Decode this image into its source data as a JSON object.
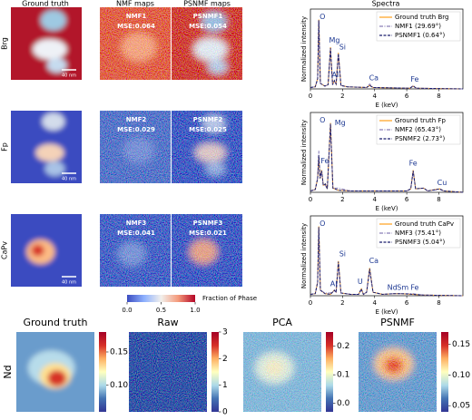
{
  "column_titles": [
    "Ground truth",
    "NMF maps",
    "PSNMF maps",
    "Spectra"
  ],
  "rows": [
    {
      "label": "Brg",
      "scale_bar": "40 nm",
      "nmf_label": "NMF1",
      "nmf_mse": "MSE:0.064",
      "psnmf_label": "PSNMF1",
      "psnmf_mse": "MSE:0.054"
    },
    {
      "label": "Fp",
      "scale_bar": "40 nm",
      "nmf_label": "NMF2",
      "nmf_mse": "MSE:0.029",
      "psnmf_label": "PSNMF2",
      "psnmf_mse": "MSE:0.025"
    },
    {
      "label": "CaPv",
      "scale_bar": "40 nm",
      "nmf_label": "NMF3",
      "nmf_mse": "MSE:0.041",
      "psnmf_label": "PSNMF3",
      "psnmf_mse": "MSE:0.021"
    }
  ],
  "colorbar": {
    "label": "Fraction of Phase",
    "lim": [
      0,
      1
    ],
    "ticks": [
      {
        "value": 0,
        "label": "0.0"
      },
      {
        "value": 0.5,
        "label": "0.5"
      },
      {
        "value": 1,
        "label": "1.0"
      }
    ]
  },
  "chart_data": [
    {
      "type": "line",
      "xlabel": "E (keV)",
      "ylabel": "Normalized intensity",
      "xlim": [
        0,
        9.5
      ],
      "xticks": [
        0,
        2,
        4,
        6,
        8
      ],
      "ylim": [
        0,
        1.15
      ],
      "legend": "upper right",
      "x": [
        0,
        0.3,
        0.45,
        0.52,
        0.62,
        0.9,
        1.1,
        1.25,
        1.38,
        1.49,
        1.6,
        1.74,
        1.9,
        2.3,
        3.5,
        3.69,
        3.9,
        6.2,
        6.4,
        6.6,
        9.5
      ],
      "series": [
        {
          "name": "Ground truth Brg",
          "color": "#ff9f1c",
          "linestyle": "solid",
          "values": [
            0.02,
            0.03,
            0.15,
            1.0,
            0.08,
            0.04,
            0.06,
            0.6,
            0.06,
            0.12,
            0.07,
            0.52,
            0.05,
            0.03,
            0.02,
            0.05,
            0.02,
            0.01,
            0.04,
            0.01,
            0.0
          ]
        },
        {
          "name": "NMF1 (29.69°)",
          "color": "#8a7fb8",
          "linestyle": "dashdot",
          "values": [
            0.02,
            0.03,
            0.14,
            0.98,
            0.08,
            0.04,
            0.06,
            0.58,
            0.06,
            0.11,
            0.07,
            0.5,
            0.05,
            0.03,
            0.02,
            0.07,
            0.02,
            0.01,
            0.05,
            0.01,
            0.0
          ]
        },
        {
          "name": "PSNMF1 (0.64°)",
          "color": "#1b1f6e",
          "linestyle": "dashed",
          "values": [
            0.02,
            0.03,
            0.15,
            0.99,
            0.08,
            0.04,
            0.06,
            0.59,
            0.06,
            0.12,
            0.07,
            0.51,
            0.05,
            0.03,
            0.02,
            0.05,
            0.02,
            0.01,
            0.04,
            0.01,
            0.0
          ]
        }
      ],
      "annotations": [
        "O",
        "Mg",
        "Si",
        "Al",
        "Ca",
        "Fe"
      ]
    },
    {
      "type": "line",
      "xlabel": "E (keV)",
      "ylabel": "Normalized intensity",
      "xlim": [
        0,
        9.5
      ],
      "xticks": [
        0,
        2,
        4,
        6,
        8
      ],
      "ylim": [
        0,
        1.15
      ],
      "legend": "upper right",
      "x": [
        0,
        0.3,
        0.45,
        0.52,
        0.6,
        0.7,
        0.8,
        0.93,
        1.05,
        1.25,
        1.4,
        1.74,
        2.5,
        6.0,
        6.25,
        6.4,
        6.55,
        7.06,
        7.3,
        8.05,
        8.3,
        9.5
      ],
      "series": [
        {
          "name": "Ground truth Fp",
          "color": "#ff9f1c",
          "linestyle": "solid",
          "values": [
            0.02,
            0.04,
            0.2,
            0.52,
            0.2,
            0.32,
            0.1,
            0.12,
            0.05,
            1.0,
            0.06,
            0.03,
            0.02,
            0.02,
            0.05,
            0.32,
            0.05,
            0.06,
            0.02,
            0.05,
            0.02,
            0.0
          ]
        },
        {
          "name": "NMF2 (65.43°)",
          "color": "#8a7fb8",
          "linestyle": "dashdot",
          "values": [
            0.02,
            0.04,
            0.22,
            0.6,
            0.2,
            0.3,
            0.1,
            0.1,
            0.05,
            0.95,
            0.06,
            0.06,
            0.02,
            0.02,
            0.05,
            0.3,
            0.05,
            0.06,
            0.02,
            0.04,
            0.02,
            0.0
          ]
        },
        {
          "name": "PSNMF2 (2.73°)",
          "color": "#1b1f6e",
          "linestyle": "dashed",
          "values": [
            0.02,
            0.04,
            0.2,
            0.53,
            0.2,
            0.31,
            0.1,
            0.12,
            0.05,
            0.99,
            0.06,
            0.03,
            0.02,
            0.02,
            0.05,
            0.31,
            0.05,
            0.06,
            0.02,
            0.05,
            0.02,
            0.0
          ]
        }
      ],
      "annotations": [
        "O",
        "Mg",
        "Fe",
        "Fe",
        "Cu"
      ]
    },
    {
      "type": "line",
      "xlabel": "E (keV)",
      "ylabel": "Normalized intensity",
      "xlim": [
        0,
        9.5
      ],
      "xticks": [
        0,
        2,
        4,
        6,
        8
      ],
      "ylim": [
        0,
        1.15
      ],
      "legend": "upper right",
      "x": [
        0,
        0.3,
        0.45,
        0.52,
        0.62,
        0.9,
        1.25,
        1.49,
        1.6,
        1.74,
        1.9,
        2.5,
        3.0,
        3.17,
        3.3,
        3.5,
        3.69,
        3.9,
        4.5,
        5.23,
        5.6,
        6.4,
        7.0,
        9.5
      ],
      "series": [
        {
          "name": "Ground truth CaPv",
          "color": "#ff9f1c",
          "linestyle": "solid",
          "values": [
            0.02,
            0.03,
            0.2,
            1.0,
            0.08,
            0.03,
            0.02,
            0.08,
            0.05,
            0.5,
            0.04,
            0.02,
            0.02,
            0.1,
            0.02,
            0.05,
            0.4,
            0.05,
            0.02,
            0.03,
            0.03,
            0.02,
            0.01,
            0.0
          ]
        },
        {
          "name": "NMF3 (75.41°)",
          "color": "#8a7fb8",
          "linestyle": "dashdot",
          "values": [
            0.02,
            0.03,
            0.18,
            0.95,
            0.08,
            0.04,
            0.04,
            0.07,
            0.05,
            0.46,
            0.04,
            0.02,
            0.02,
            0.08,
            0.02,
            0.05,
            0.36,
            0.05,
            0.02,
            0.03,
            0.03,
            0.03,
            0.01,
            0.0
          ]
        },
        {
          "name": "PSNMF3 (5.04°)",
          "color": "#1b1f6e",
          "linestyle": "dashed",
          "values": [
            0.02,
            0.03,
            0.2,
            0.99,
            0.08,
            0.03,
            0.02,
            0.08,
            0.05,
            0.49,
            0.04,
            0.02,
            0.02,
            0.1,
            0.02,
            0.05,
            0.39,
            0.05,
            0.02,
            0.03,
            0.03,
            0.02,
            0.01,
            0.0
          ]
        }
      ],
      "annotations": [
        "O",
        "Si",
        "Al",
        "U",
        "Ca",
        "Nd",
        "Sm",
        "Fe"
      ]
    }
  ],
  "bottom": {
    "row_label": "Nd",
    "panels": [
      {
        "title": "Ground truth",
        "clim": [
          0.06,
          0.18
        ],
        "ticks": [
          {
            "value": 0.1,
            "label": "0.10"
          },
          {
            "value": 0.15,
            "label": "0.15"
          }
        ]
      },
      {
        "title": "Raw",
        "clim": [
          0,
          3
        ],
        "ticks": [
          0,
          1,
          2,
          3
        ]
      },
      {
        "title": "PCA",
        "clim": [
          -0.03,
          0.25
        ],
        "ticks": [
          {
            "value": 0,
            "label": "0.0"
          },
          {
            "value": 0.1,
            "label": "0.1"
          },
          {
            "value": 0.2,
            "label": "0.2"
          }
        ]
      },
      {
        "title": "PSNMF",
        "clim": [
          0.04,
          0.17
        ],
        "ticks": [
          {
            "value": 0.05,
            "label": "0.05"
          },
          {
            "value": 0.1,
            "label": "0.10"
          },
          {
            "value": 0.15,
            "label": "0.15"
          }
        ]
      }
    ]
  }
}
